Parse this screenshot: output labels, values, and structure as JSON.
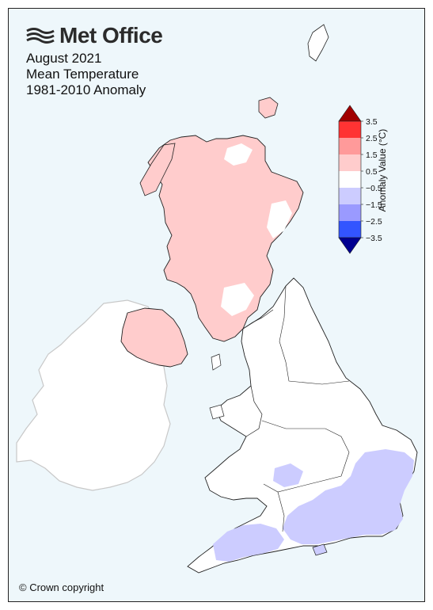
{
  "brand": {
    "name": "Met Office",
    "logo_icon": "wave-lines-icon"
  },
  "title": {
    "line1": "August 2021",
    "line2": "Mean Temperature",
    "line3": "1981-2010 Anomaly"
  },
  "legend": {
    "label": "Anomaly Value (°C)",
    "ticks": [
      "3.5",
      "2.5",
      "1.5",
      "0.5",
      "−0.5",
      "−1.5",
      "−2.5",
      "−3.5"
    ],
    "bands": [
      {
        "range": "above 3.5",
        "color": "#a00000"
      },
      {
        "range": "2.5 to 3.5",
        "color": "#ff3333"
      },
      {
        "range": "1.5 to 2.5",
        "color": "#ff9a9a"
      },
      {
        "range": "0.5 to 1.5",
        "color": "#ffcccc"
      },
      {
        "range": "-0.5 to 0.5",
        "color": "#ffffff"
      },
      {
        "range": "-1.5 to -0.5",
        "color": "#ccccff"
      },
      {
        "range": "-2.5 to -1.5",
        "color": "#9a9aff"
      },
      {
        "range": "-3.5 to -2.5",
        "color": "#3355ff"
      },
      {
        "range": "below -3.5",
        "color": "#000090"
      }
    ]
  },
  "regions": {
    "scotland": {
      "anomaly_band": "0.5 to 1.5",
      "color": "#ffcccc"
    },
    "northern_ireland": {
      "anomaly_band": "0.5 to 1.5",
      "color": "#ffcccc"
    },
    "england_north_wales": {
      "anomaly_band": "-0.5 to 0.5",
      "color": "#ffffff"
    },
    "south_england": {
      "anomaly_band": "-1.5 to -0.5",
      "color": "#ccccff"
    },
    "ireland": {
      "color": "#ffffff"
    }
  },
  "footer": {
    "copyright": "© Crown copyright"
  }
}
